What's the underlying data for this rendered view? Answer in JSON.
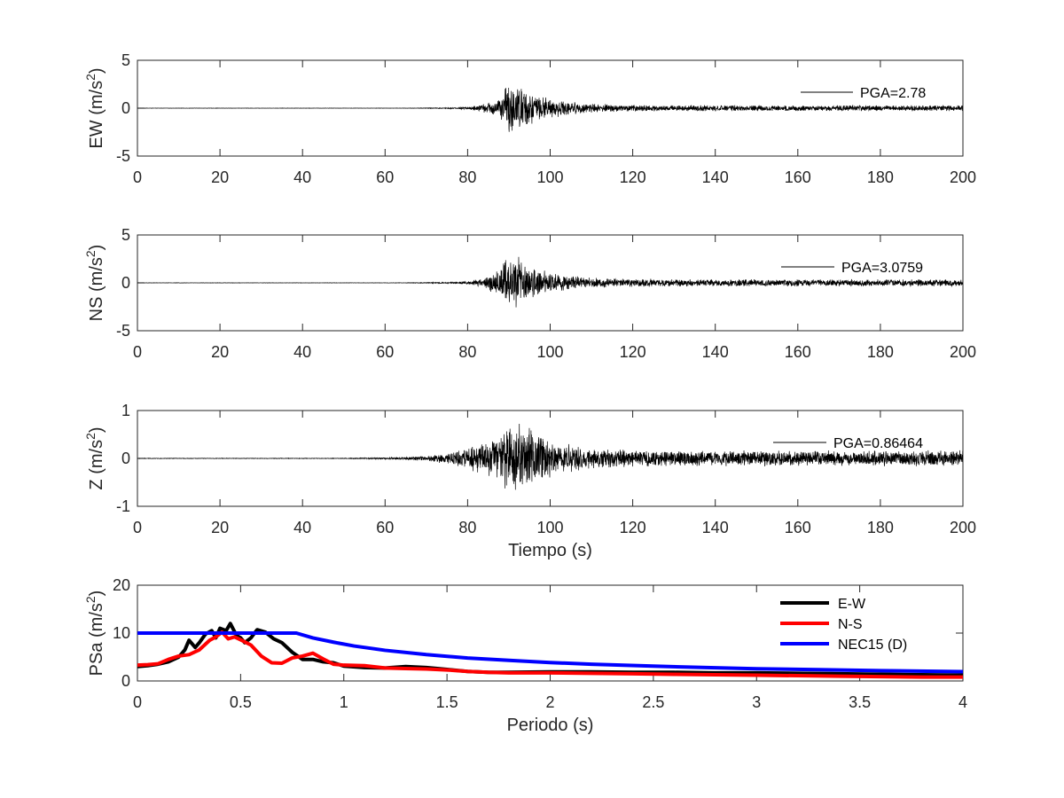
{
  "chart_data": [
    {
      "type": "line",
      "xlim": [
        0,
        200
      ],
      "ylim": [
        -5,
        5
      ],
      "x_ticks": [
        "0",
        "20",
        "40",
        "60",
        "80",
        "100",
        "120",
        "140",
        "160",
        "180",
        "200"
      ],
      "y_ticks": [
        "5",
        "0",
        "-5"
      ],
      "ylabel_main": "EW (m/s",
      "ylabel_sup": "2",
      "ylabel_end": ")",
      "xlabel": "",
      "legend_text": "PGA=2.78",
      "series": [
        {
          "color": "#000000",
          "pga": 2.78,
          "onset": 78,
          "peak_time": 92,
          "envelope_start": 0.04,
          "envelope_end": 0.03
        }
      ]
    },
    {
      "type": "line",
      "xlim": [
        0,
        200
      ],
      "ylim": [
        -5,
        5
      ],
      "x_ticks": [
        "0",
        "20",
        "40",
        "60",
        "80",
        "100",
        "120",
        "140",
        "160",
        "180",
        "200"
      ],
      "y_ticks": [
        "5",
        "0",
        "-5"
      ],
      "ylabel_main": "NS (m/s",
      "ylabel_sup": "2",
      "ylabel_end": ")",
      "xlabel": "",
      "legend_text": "PGA=3.0759",
      "series": [
        {
          "color": "#000000",
          "pga": 3.0759,
          "onset": 78,
          "peak_time": 91,
          "envelope_start": 0.04,
          "envelope_end": 0.04
        }
      ]
    },
    {
      "type": "line",
      "xlim": [
        0,
        200
      ],
      "ylim": [
        -1,
        1
      ],
      "x_ticks": [
        "0",
        "20",
        "40",
        "60",
        "80",
        "100",
        "120",
        "140",
        "160",
        "180",
        "200"
      ],
      "y_ticks": [
        "1",
        "0",
        "-1"
      ],
      "ylabel_main": "Z (m/s",
      "ylabel_sup": "2",
      "ylabel_end": ")",
      "xlabel": "Tiempo (s)",
      "legend_text": "PGA=0.86464",
      "series": [
        {
          "color": "#000000",
          "pga": 0.86464,
          "onset": 65,
          "peak_time": 92,
          "envelope_start": 0.05,
          "envelope_end": 0.1
        }
      ]
    },
    {
      "type": "line",
      "xlim": [
        0,
        4
      ],
      "ylim": [
        0,
        20
      ],
      "x_ticks": [
        "0",
        "0.5",
        "1",
        "1.5",
        "2",
        "2.5",
        "3",
        "3.5",
        "4"
      ],
      "y_ticks": [
        "20",
        "10",
        "0"
      ],
      "ylabel_main": "PSa (m/s",
      "ylabel_sup": "2",
      "ylabel_end": ")",
      "xlabel": "Periodo (s)",
      "legend": "top-right",
      "series": [
        {
          "name": "E-W",
          "color": "#000000",
          "x": [
            0,
            0.05,
            0.1,
            0.15,
            0.2,
            0.23,
            0.25,
            0.28,
            0.3,
            0.33,
            0.36,
            0.38,
            0.4,
            0.43,
            0.45,
            0.48,
            0.5,
            0.52,
            0.55,
            0.58,
            0.62,
            0.66,
            0.7,
            0.75,
            0.8,
            0.85,
            0.9,
            0.95,
            1.0,
            1.1,
            1.2,
            1.3,
            1.4,
            1.5,
            1.6,
            1.7,
            1.8,
            2.0,
            2.2,
            2.4,
            2.6,
            2.8,
            3.0,
            3.2,
            3.4,
            3.6,
            3.8,
            4.0
          ],
          "y": [
            3.0,
            3.2,
            3.5,
            4.0,
            5.0,
            6.5,
            8.5,
            7.0,
            8.0,
            9.8,
            10.5,
            9.0,
            11.0,
            10.5,
            12.0,
            9.5,
            9.0,
            8.0,
            9.0,
            10.7,
            10.2,
            8.8,
            8.0,
            6.0,
            4.5,
            4.5,
            4.0,
            3.8,
            3.1,
            2.8,
            2.7,
            3.0,
            2.8,
            2.4,
            2.0,
            1.8,
            1.8,
            1.9,
            1.9,
            1.8,
            1.8,
            1.7,
            1.7,
            1.6,
            1.5,
            1.4,
            1.3,
            1.2
          ]
        },
        {
          "name": "N-S",
          "color": "#ff0000",
          "x": [
            0,
            0.05,
            0.1,
            0.15,
            0.2,
            0.25,
            0.3,
            0.35,
            0.38,
            0.41,
            0.44,
            0.47,
            0.5,
            0.55,
            0.6,
            0.65,
            0.7,
            0.75,
            0.8,
            0.85,
            0.9,
            0.95,
            1.0,
            1.1,
            1.2,
            1.3,
            1.4,
            1.5,
            1.6,
            1.7,
            1.8,
            2.0,
            2.2,
            2.4,
            2.6,
            2.8,
            3.0,
            3.2,
            3.4,
            3.6,
            3.8,
            4.0
          ],
          "y": [
            3.3,
            3.4,
            3.6,
            4.5,
            5.2,
            5.5,
            6.5,
            8.5,
            9.2,
            10.2,
            8.8,
            9.2,
            8.6,
            7.5,
            5.2,
            3.8,
            3.7,
            4.8,
            5.2,
            5.8,
            4.6,
            3.5,
            3.3,
            3.2,
            2.7,
            2.6,
            2.5,
            2.3,
            2.0,
            1.8,
            1.7,
            1.7,
            1.6,
            1.5,
            1.4,
            1.3,
            1.2,
            1.1,
            1.0,
            0.9,
            0.8,
            0.8
          ]
        },
        {
          "name": "NEC15 (D)",
          "color": "#0000ff",
          "x": [
            0,
            0.77,
            0.85,
            0.95,
            1.05,
            1.2,
            1.4,
            1.6,
            1.8,
            2.0,
            2.2,
            2.5,
            2.8,
            3.0,
            3.3,
            3.6,
            4.0
          ],
          "y": [
            10.0,
            10.0,
            9.0,
            8.1,
            7.3,
            6.4,
            5.5,
            4.8,
            4.3,
            3.85,
            3.5,
            3.1,
            2.75,
            2.55,
            2.35,
            2.15,
            1.95
          ]
        }
      ]
    }
  ]
}
